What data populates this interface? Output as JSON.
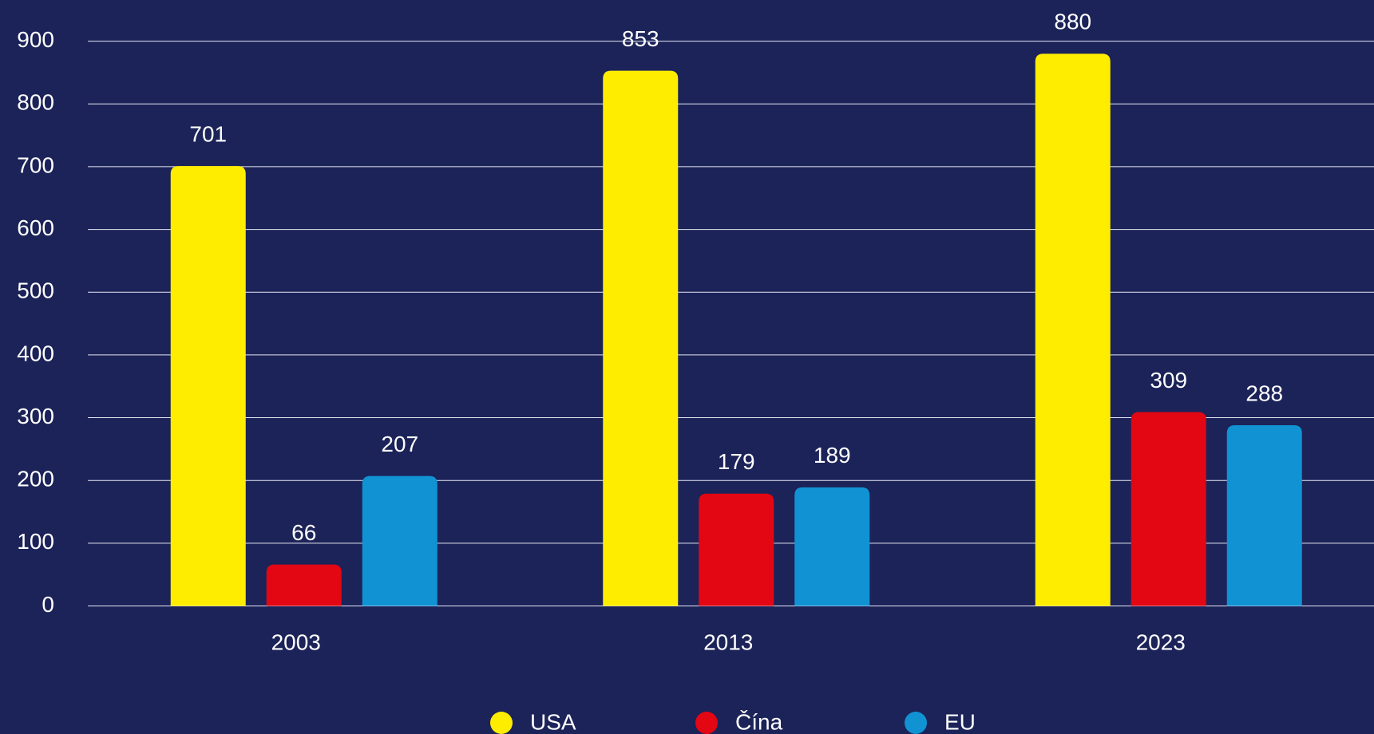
{
  "chart_data": {
    "type": "bar",
    "categories": [
      "2003",
      "2013",
      "2023"
    ],
    "series": [
      {
        "name": "USA",
        "color": "#ffed00",
        "values": [
          701,
          853,
          880
        ]
      },
      {
        "name": "Čína",
        "color": "#e30613",
        "values": [
          66,
          179,
          309
        ]
      },
      {
        "name": "EU",
        "color": "#1193d3",
        "values": [
          207,
          189,
          288
        ]
      }
    ],
    "ylim": [
      0,
      900
    ],
    "yticks": [
      0,
      100,
      200,
      300,
      400,
      500,
      600,
      700,
      800,
      900
    ],
    "grid": true,
    "legend": "bottom"
  }
}
